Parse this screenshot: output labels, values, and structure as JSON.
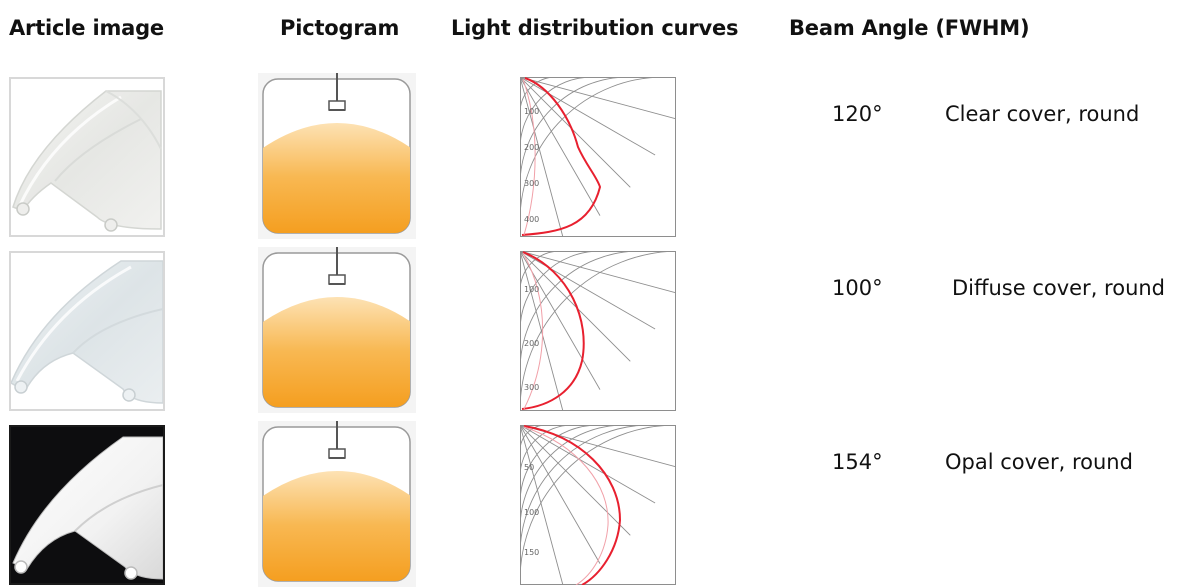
{
  "headers": {
    "article_image": "Article image",
    "pictogram": "Pictogram",
    "light_distribution_curves": "Light distribution curves",
    "beam_angle": "Beam Angle (FWHM)"
  },
  "rows": [
    {
      "beam_angle": "120°",
      "description": "Clear cover, round",
      "article_background": "#ffffff",
      "curve_ticks": [
        "100",
        "200",
        "300",
        "400"
      ]
    },
    {
      "beam_angle": "100°",
      "description": "Diffuse cover, round",
      "article_background": "#ffffff",
      "curve_ticks": [
        "100",
        "200",
        "300"
      ]
    },
    {
      "beam_angle": "154°",
      "description": "Opal cover, round",
      "article_background": "#0d0d0f",
      "curve_ticks": [
        "50",
        "100",
        "150"
      ]
    }
  ],
  "colors": {
    "pictogram_light_top": "#fde2b4",
    "pictogram_light_bottom": "#f49a17",
    "curve_red": "#e8202f",
    "grid_gray": "#8e8e8e"
  },
  "icons": {
    "pictogram": "pendant-lamp-light-cone-icon",
    "curve": "polar-light-distribution-icon"
  }
}
